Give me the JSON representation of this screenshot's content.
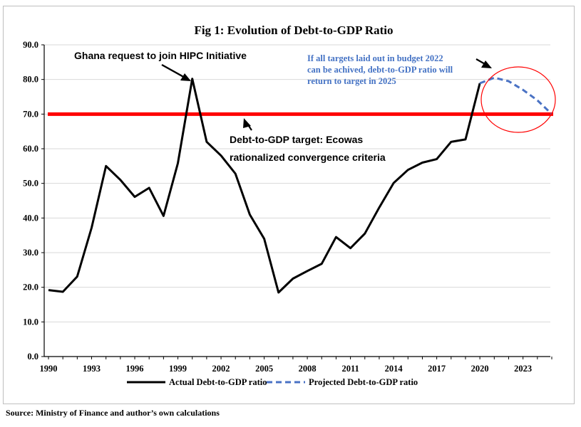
{
  "chart_data": {
    "type": "line",
    "title": "Fig 1: Evolution of Debt-to-GDP Ratio",
    "ylim": [
      0,
      90
    ],
    "xlim": [
      1990,
      2025
    ],
    "y_ticks": [
      "0.0",
      "10.0",
      "20.0",
      "30.0",
      "40.0",
      "50.0",
      "60.0",
      "70.0",
      "80.0",
      "90.0"
    ],
    "x_ticks": [
      "1990",
      "1993",
      "1996",
      "1999",
      "2002",
      "2005",
      "2008",
      "2011",
      "2014",
      "2017",
      "2020",
      "2023"
    ],
    "grid": "horizontal",
    "legend_position": "bottom",
    "series": [
      {
        "name": "Actual Debt-to-GDP ratio",
        "color": "#000000",
        "style": "solid",
        "x": [
          1990,
          1991,
          1992,
          1993,
          1994,
          1995,
          1996,
          1997,
          1998,
          1999,
          2000,
          2001,
          2002,
          2003,
          2004,
          2005,
          2006,
          2007,
          2008,
          2009,
          2010,
          2011,
          2012,
          2013,
          2014,
          2015,
          2016,
          2017,
          2018,
          2019,
          2020
        ],
        "values": [
          19.2,
          18.7,
          23.1,
          37.2,
          55.0,
          51.0,
          46.1,
          48.7,
          40.6,
          55.8,
          80.2,
          62.0,
          58.0,
          52.8,
          41.0,
          34.0,
          18.5,
          22.5,
          24.7,
          26.8,
          34.5,
          31.3,
          35.5,
          43.0,
          50.1,
          53.9,
          56.0,
          57.0,
          62.0,
          62.7,
          78.9
        ]
      },
      {
        "name": "Projected Debt-to-GDP ratio",
        "color": "#4a72c4",
        "style": "dashed",
        "x": [
          2020,
          2021,
          2022,
          2023,
          2024,
          2025
        ],
        "values": [
          78.9,
          80.5,
          79.5,
          77.0,
          74.0,
          70.0
        ]
      }
    ],
    "target_line": {
      "value": 70.0,
      "color": "#ff0000"
    },
    "annotations": [
      {
        "text": "Ghana request to join HIPC Initiative"
      },
      {
        "lines": [
          "Debt-to-GDP target: Ecowas",
          "rationalized convergence criteria"
        ]
      },
      {
        "lines": [
          "If all targets laid out in budget 2022",
          "can be achived, debt-to-GDP ratio will",
          "return to target in 2025"
        ],
        "color": "#4472c4"
      }
    ]
  },
  "source": "Source: Ministry of Finance and author’s own calculations"
}
